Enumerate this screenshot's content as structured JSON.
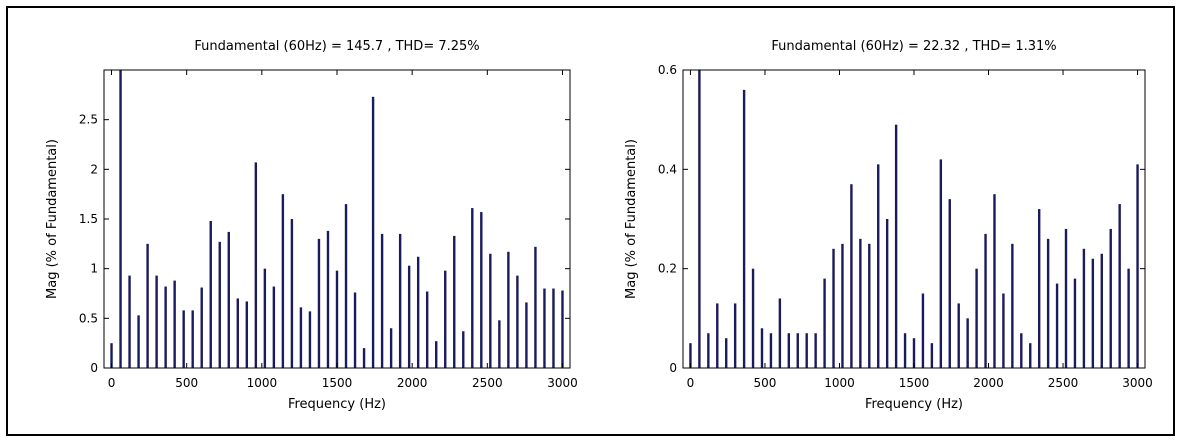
{
  "chart_data": [
    {
      "type": "bar",
      "title": "Fundamental (60Hz) = 145.7 , THD= 7.25%",
      "xlabel": "Frequency (Hz)",
      "ylabel": "Mag (% of Fundamental)",
      "xlim": [
        -50,
        3050
      ],
      "ylim": [
        0,
        3
      ],
      "xticks": [
        0,
        500,
        1000,
        1500,
        2000,
        2500,
        3000
      ],
      "xtick_labels": [
        "0",
        "500",
        "1000",
        "1500",
        "2000",
        "2500",
        "3000"
      ],
      "yticks": [
        0,
        0.5,
        1,
        1.5,
        2,
        2.5
      ],
      "ytick_labels": [
        "0",
        "0.5",
        "1",
        "1.5",
        "2",
        "2.5"
      ],
      "grid": false,
      "x": [
        0,
        60,
        120,
        180,
        240,
        300,
        360,
        420,
        480,
        540,
        600,
        660,
        720,
        780,
        840,
        900,
        960,
        1020,
        1080,
        1140,
        1200,
        1260,
        1320,
        1380,
        1440,
        1500,
        1560,
        1620,
        1680,
        1740,
        1800,
        1860,
        1920,
        1980,
        2040,
        2100,
        2160,
        2220,
        2280,
        2340,
        2400,
        2460,
        2520,
        2580,
        2640,
        2700,
        2760,
        2820,
        2880,
        2940,
        3000
      ],
      "values": [
        0.25,
        3.0,
        0.93,
        0.53,
        1.25,
        0.93,
        0.82,
        0.88,
        0.58,
        0.58,
        0.81,
        1.48,
        1.27,
        1.37,
        0.7,
        0.67,
        2.07,
        1.0,
        0.82,
        1.75,
        1.5,
        0.61,
        0.57,
        1.3,
        1.38,
        0.98,
        1.65,
        0.76,
        0.2,
        2.73,
        1.35,
        0.4,
        1.35,
        1.03,
        1.12,
        0.77,
        0.27,
        0.98,
        1.33,
        0.37,
        1.61,
        1.57,
        1.15,
        0.48,
        1.17,
        0.93,
        0.66,
        1.22,
        0.8,
        0.8,
        0.78
      ]
    },
    {
      "type": "bar",
      "title": "Fundamental (60Hz) = 22.32 , THD= 1.31%",
      "xlabel": "Frequency (Hz)",
      "ylabel": "Mag (% of Fundamental)",
      "xlim": [
        -50,
        3050
      ],
      "ylim": [
        0,
        0.6
      ],
      "xticks": [
        0,
        500,
        1000,
        1500,
        2000,
        2500,
        3000
      ],
      "xtick_labels": [
        "0",
        "500",
        "1000",
        "1500",
        "2000",
        "2500",
        "3000"
      ],
      "yticks": [
        0,
        0.2,
        0.4,
        0.6
      ],
      "ytick_labels": [
        "0",
        "0.2",
        "0.4",
        "0.6"
      ],
      "grid": false,
      "x": [
        0,
        60,
        120,
        180,
        240,
        300,
        360,
        420,
        480,
        540,
        600,
        660,
        720,
        780,
        840,
        900,
        960,
        1020,
        1080,
        1140,
        1200,
        1260,
        1320,
        1380,
        1440,
        1500,
        1560,
        1620,
        1680,
        1740,
        1800,
        1860,
        1920,
        1980,
        2040,
        2100,
        2160,
        2220,
        2280,
        2340,
        2400,
        2460,
        2520,
        2580,
        2640,
        2700,
        2760,
        2820,
        2880,
        2940,
        3000
      ],
      "values": [
        0.05,
        0.6,
        0.07,
        0.13,
        0.06,
        0.13,
        0.56,
        0.2,
        0.08,
        0.07,
        0.14,
        0.07,
        0.07,
        0.07,
        0.07,
        0.18,
        0.24,
        0.25,
        0.37,
        0.26,
        0.25,
        0.41,
        0.3,
        0.49,
        0.07,
        0.06,
        0.15,
        0.05,
        0.42,
        0.34,
        0.13,
        0.1,
        0.2,
        0.27,
        0.35,
        0.15,
        0.25,
        0.07,
        0.05,
        0.32,
        0.26,
        0.17,
        0.28,
        0.18,
        0.24,
        0.22,
        0.23,
        0.28,
        0.33,
        0.2,
        0.41
      ]
    }
  ]
}
